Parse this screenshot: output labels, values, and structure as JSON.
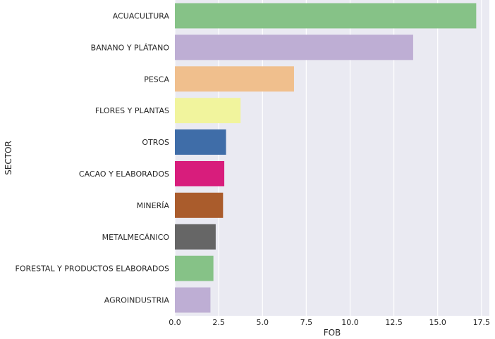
{
  "chart_data": {
    "type": "bar",
    "orientation": "horizontal",
    "categories": [
      "ACUACULTURA",
      "BANANO Y PLÁTANO",
      "PESCA",
      "FLORES Y PLANTAS",
      "OTROS",
      "CACAO Y ELABORADOS",
      "MINERÍA",
      "METALMECÁNICO",
      "FORESTAL Y PRODUCTOS ELABORADOS",
      "AGROINDUSTRIA"
    ],
    "values": [
      17.2,
      13.6,
      6.8,
      3.75,
      2.92,
      2.82,
      2.75,
      2.33,
      2.2,
      2.03
    ],
    "colors": [
      "#86c287",
      "#beaed4",
      "#f0bf8d",
      "#f1f49d",
      "#3f6da8",
      "#d81d7c",
      "#aa5c2c",
      "#666666",
      "#86c287",
      "#beaed4"
    ],
    "xlabel": "FOB",
    "ylabel": "SECTOR",
    "xlim": [
      0,
      17.95
    ],
    "xticks": [
      0,
      2.5,
      5,
      7.5,
      10,
      12.5,
      15,
      17.5
    ],
    "xtick_labels": [
      "0.0",
      "2.5",
      "5.0",
      "7.5",
      "10.0",
      "12.5",
      "15.0",
      "17.5"
    ],
    "grid": true,
    "background": "#eaeaf2",
    "grid_color": "#ffffff"
  }
}
